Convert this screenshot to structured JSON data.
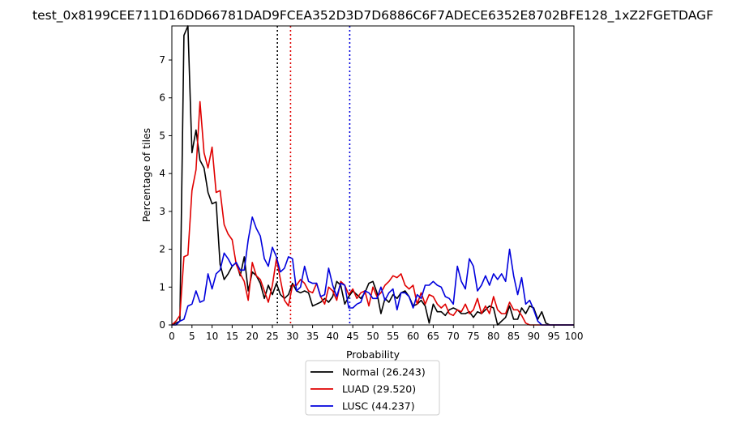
{
  "chart_data": {
    "type": "line",
    "title": "test_0x8199CEE711D16DD66781DAD9FCEA352D3D7D6886C6F7ADECE6352E8702BFE128_1xZ2FGETDAGF",
    "xlabel": "Probability",
    "ylabel": "Percentage of tiles",
    "xlim": [
      0,
      100
    ],
    "ylim": [
      0,
      7.9
    ],
    "xticks": [
      "0",
      "5",
      "10",
      "15",
      "20",
      "25",
      "30",
      "35",
      "40",
      "45",
      "50",
      "55",
      "60",
      "65",
      "70",
      "75",
      "80",
      "85",
      "90",
      "95",
      "100"
    ],
    "yticks": [
      "0",
      "1",
      "2",
      "3",
      "4",
      "5",
      "6",
      "7"
    ],
    "grid": false,
    "legend_position": "below",
    "x": [
      0,
      1,
      2,
      3,
      4,
      5,
      6,
      7,
      8,
      9,
      10,
      11,
      12,
      13,
      14,
      15,
      16,
      17,
      18,
      19,
      20,
      21,
      22,
      23,
      24,
      25,
      26,
      27,
      28,
      29,
      30,
      31,
      32,
      33,
      34,
      35,
      36,
      37,
      38,
      39,
      40,
      41,
      42,
      43,
      44,
      45,
      46,
      47,
      48,
      49,
      50,
      51,
      52,
      53,
      54,
      55,
      56,
      57,
      58,
      59,
      60,
      61,
      62,
      63,
      64,
      65,
      66,
      67,
      68,
      69,
      70,
      71,
      72,
      73,
      74,
      75,
      76,
      77,
      78,
      79,
      80,
      81,
      82,
      83,
      84,
      85,
      86,
      87,
      88,
      89,
      90,
      91,
      92,
      93,
      94,
      95,
      96,
      97,
      98,
      99,
      100
    ],
    "series": [
      {
        "name": "Normal (26.243)",
        "color": "#000000",
        "values": [
          0,
          0.05,
          0.1,
          7.65,
          7.95,
          4.55,
          5.15,
          4.35,
          4.15,
          3.5,
          3.2,
          3.25,
          1.6,
          1.2,
          1.35,
          1.55,
          1.65,
          1.3,
          1.8,
          0.9,
          1.4,
          1.3,
          1.1,
          0.7,
          1.05,
          0.8,
          1.1,
          0.8,
          0.7,
          0.8,
          1.1,
          0.9,
          0.85,
          0.9,
          0.85,
          0.5,
          0.55,
          0.6,
          0.7,
          0.6,
          0.75,
          1.15,
          1.05,
          0.55,
          0.75,
          0.9,
          0.8,
          0.7,
          0.85,
          1.1,
          1.15,
          0.85,
          0.3,
          0.7,
          0.6,
          0.8,
          0.7,
          0.85,
          0.9,
          0.75,
          0.5,
          0.55,
          0.65,
          0.5,
          0.05,
          0.55,
          0.35,
          0.35,
          0.25,
          0.4,
          0.45,
          0.4,
          0.3,
          0.3,
          0.35,
          0.2,
          0.35,
          0.3,
          0.4,
          0.5,
          0.45,
          0.0,
          0.1,
          0.2,
          0.5,
          0.15,
          0.15,
          0.45,
          0.3,
          0.5,
          0.45,
          0.15,
          0.35,
          0.05,
          0,
          0,
          0,
          0,
          0,
          0,
          0
        ]
      },
      {
        "name": "LUAD (29.520)",
        "color": "#e00000",
        "values": [
          0,
          0.1,
          0.25,
          1.8,
          1.85,
          3.55,
          4.1,
          5.9,
          4.55,
          4.15,
          4.7,
          3.5,
          3.55,
          2.65,
          2.4,
          2.25,
          1.6,
          1.35,
          1.15,
          0.65,
          1.65,
          1.3,
          1.2,
          0.9,
          0.6,
          1.05,
          1.75,
          1.2,
          0.65,
          0.5,
          1.05,
          1.05,
          1.2,
          1.1,
          0.9,
          0.85,
          1.1,
          0.75,
          0.55,
          1.0,
          0.9,
          0.65,
          1.15,
          1.05,
          0.8,
          0.95,
          0.7,
          0.85,
          0.9,
          0.5,
          1.0,
          0.75,
          0.85,
          1.05,
          1.15,
          1.3,
          1.25,
          1.35,
          1.05,
          0.95,
          1.05,
          0.55,
          0.85,
          0.55,
          0.8,
          0.75,
          0.55,
          0.45,
          0.55,
          0.3,
          0.25,
          0.4,
          0.35,
          0.55,
          0.3,
          0.4,
          0.7,
          0.3,
          0.5,
          0.3,
          0.75,
          0.4,
          0.3,
          0.3,
          0.6,
          0.4,
          0.4,
          0.25,
          0.05,
          0,
          0,
          0,
          0,
          0,
          0,
          0,
          0,
          0,
          0,
          0,
          0
        ]
      },
      {
        "name": "LUSC (44.237)",
        "color": "#0000dd",
        "values": [
          0,
          0,
          0.1,
          0.15,
          0.5,
          0.55,
          0.9,
          0.6,
          0.65,
          1.35,
          0.95,
          1.35,
          1.45,
          1.9,
          1.75,
          1.55,
          1.65,
          1.45,
          1.45,
          2.25,
          2.85,
          2.55,
          2.35,
          1.75,
          1.55,
          2.05,
          1.8,
          1.4,
          1.5,
          1.8,
          1.75,
          0.9,
          1.0,
          1.55,
          1.15,
          1.1,
          1.1,
          0.75,
          0.8,
          1.5,
          1.05,
          0.75,
          1.1,
          1.05,
          0.45,
          0.45,
          0.55,
          0.6,
          0.9,
          0.85,
          0.7,
          0.7,
          1.0,
          0.65,
          0.85,
          0.95,
          0.4,
          0.85,
          0.85,
          0.75,
          0.45,
          0.8,
          0.7,
          1.05,
          1.05,
          1.15,
          1.05,
          1.0,
          0.75,
          0.7,
          0.55,
          1.55,
          1.15,
          0.95,
          1.75,
          1.55,
          0.9,
          1.05,
          1.3,
          1.05,
          1.35,
          1.2,
          1.35,
          1.15,
          2.0,
          1.3,
          0.8,
          1.25,
          0.55,
          0.65,
          0.4,
          0.1,
          0,
          0,
          0,
          0,
          0,
          0,
          0,
          0,
          0
        ]
      }
    ],
    "vlines": [
      {
        "x": 26.243,
        "color": "#000000"
      },
      {
        "x": 29.52,
        "color": "#e00000"
      },
      {
        "x": 44.237,
        "color": "#0000dd"
      }
    ]
  }
}
